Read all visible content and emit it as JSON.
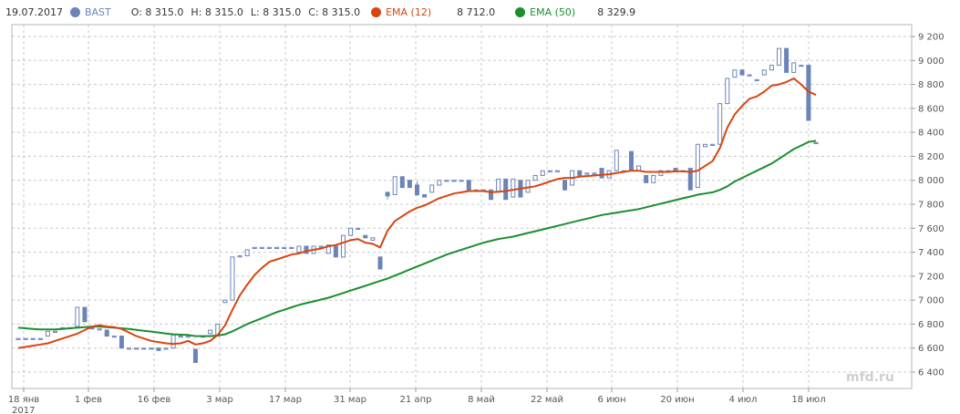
{
  "legend": {
    "date": "19.07.2017",
    "ticker": "BAST",
    "open": "O: 8 315.0",
    "high": "H: 8 315.0",
    "low": "L: 8 315.0",
    "close": "C: 8 315.0",
    "ema12_label": "EMA (12)",
    "ema12_value": "8 712.0",
    "ema50_label": "EMA (50)",
    "ema50_value": "8 329.9"
  },
  "colors": {
    "candle": "#6b84b8",
    "ema12": "#d9440f",
    "ema50": "#1a8f2e",
    "grid": "#c8c8c8"
  },
  "watermark": "mfd.ru",
  "chart_data": {
    "type": "candlestick",
    "ylim": [
      6300,
      9300
    ],
    "y_ticks": [
      "6 400",
      "6 600",
      "6 800",
      "7 000",
      "7 200",
      "7 400",
      "7 600",
      "7 800",
      "8 000",
      "8 200",
      "8 400",
      "8 600",
      "8 800",
      "9 000",
      "9 200"
    ],
    "x_ticks": [
      "18 янв",
      "1 фев",
      "16 фев",
      "3 мар",
      "17 мар",
      "31 мар",
      "21 апр",
      "8 май",
      "22 май",
      "6 июн",
      "20 июн",
      "4 июл",
      "18 июл"
    ],
    "x_subtick": "2017",
    "series": [
      {
        "name": "BAST"
      },
      {
        "name": "EMA (12)"
      },
      {
        "name": "EMA (50)"
      }
    ],
    "candles": [
      [
        6680,
        6680,
        6680,
        6680
      ],
      [
        6680,
        6680,
        6680,
        6680
      ],
      [
        6680,
        6680,
        6680,
        6680
      ],
      [
        6680,
        6680,
        6680,
        6680
      ],
      [
        6700,
        6740,
        6700,
        6740
      ],
      [
        6740,
        6740,
        6740,
        6740
      ],
      [
        6760,
        6770,
        6760,
        6770
      ],
      [
        6770,
        6770,
        6770,
        6770
      ],
      [
        6780,
        6940,
        6780,
        6940
      ],
      [
        6940,
        6940,
        6820,
        6820
      ],
      [
        6780,
        6780,
        6760,
        6760
      ],
      [
        6760,
        6760,
        6760,
        6760
      ],
      [
        6750,
        6750,
        6700,
        6700
      ],
      [
        6700,
        6700,
        6700,
        6700
      ],
      [
        6700,
        6700,
        6600,
        6600
      ],
      [
        6600,
        6600,
        6600,
        6600
      ],
      [
        6600,
        6600,
        6600,
        6600
      ],
      [
        6600,
        6600,
        6600,
        6600
      ],
      [
        6600,
        6600,
        6600,
        6600
      ],
      [
        6600,
        6600,
        6580,
        6580
      ],
      [
        6590,
        6600,
        6590,
        6600
      ],
      [
        6600,
        6710,
        6600,
        6710
      ],
      [
        6700,
        6700,
        6700,
        6700
      ],
      [
        6700,
        6700,
        6700,
        6700
      ],
      [
        6590,
        6590,
        6480,
        6480
      ],
      [
        6700,
        6700,
        6700,
        6700
      ],
      [
        6720,
        6750,
        6720,
        6750
      ],
      [
        6700,
        6800,
        6700,
        6800
      ],
      [
        6980,
        7000,
        6980,
        7000
      ],
      [
        7000,
        7360,
        7000,
        7360
      ],
      [
        7360,
        7370,
        7360,
        7370
      ],
      [
        7370,
        7420,
        7370,
        7420
      ],
      [
        7440,
        7440,
        7440,
        7440
      ],
      [
        7440,
        7440,
        7440,
        7440
      ],
      [
        7440,
        7440,
        7440,
        7440
      ],
      [
        7440,
        7440,
        7440,
        7440
      ],
      [
        7440,
        7440,
        7440,
        7440
      ],
      [
        7440,
        7440,
        7440,
        7440
      ],
      [
        7400,
        7450,
        7400,
        7450
      ],
      [
        7450,
        7450,
        7390,
        7390
      ],
      [
        7390,
        7450,
        7390,
        7450
      ],
      [
        7450,
        7450,
        7450,
        7450
      ],
      [
        7390,
        7460,
        7390,
        7460
      ],
      [
        7450,
        7450,
        7360,
        7360
      ],
      [
        7360,
        7540,
        7360,
        7540
      ],
      [
        7540,
        7600,
        7540,
        7600
      ],
      [
        7600,
        7600,
        7600,
        7600
      ],
      [
        7540,
        7540,
        7520,
        7520
      ],
      [
        7500,
        7520,
        7500,
        7520
      ],
      [
        7360,
        7360,
        7260,
        7260
      ],
      [
        7900,
        7900,
        7840,
        7870
      ],
      [
        7880,
        8030,
        7880,
        8030
      ],
      [
        8030,
        8030,
        7940,
        7940
      ],
      [
        8000,
        8000,
        7940,
        7940
      ],
      [
        7960,
        7990,
        7870,
        7880
      ],
      [
        7880,
        7880,
        7860,
        7860
      ],
      [
        7900,
        7960,
        7900,
        7960
      ],
      [
        7960,
        8000,
        7960,
        8000
      ],
      [
        8000,
        8000,
        8000,
        8000
      ],
      [
        8000,
        8000,
        8000,
        8000
      ],
      [
        8000,
        8000,
        8000,
        8000
      ],
      [
        8000,
        8000,
        7920,
        7920
      ],
      [
        7920,
        7920,
        7920,
        7920
      ],
      [
        7920,
        7920,
        7920,
        7920
      ],
      [
        7920,
        7920,
        7840,
        7840
      ],
      [
        7900,
        8010,
        7900,
        8010
      ],
      [
        8010,
        8010,
        7840,
        7840
      ],
      [
        7860,
        8010,
        7860,
        8010
      ],
      [
        8000,
        8000,
        7860,
        7860
      ],
      [
        7900,
        8000,
        7900,
        8000
      ],
      [
        8000,
        8040,
        8000,
        8040
      ],
      [
        8040,
        8080,
        8040,
        8080
      ],
      [
        8080,
        8080,
        8080,
        8080
      ],
      [
        8080,
        8080,
        8080,
        8080
      ],
      [
        8000,
        8000,
        7920,
        7920
      ],
      [
        7960,
        8080,
        7960,
        8080
      ],
      [
        8080,
        8080,
        8040,
        8040
      ],
      [
        8060,
        8060,
        8060,
        8060
      ],
      [
        8060,
        8060,
        8060,
        8060
      ],
      [
        8100,
        8100,
        8020,
        8020
      ],
      [
        8020,
        8080,
        8020,
        8080
      ],
      [
        8080,
        8250,
        8080,
        8250
      ],
      [
        8080,
        8080,
        8080,
        8080
      ],
      [
        8240,
        8240,
        8080,
        8080
      ],
      [
        8080,
        8120,
        8080,
        8120
      ],
      [
        8040,
        8040,
        7980,
        7980
      ],
      [
        7980,
        8040,
        7980,
        8040
      ],
      [
        8040,
        8080,
        8040,
        8080
      ],
      [
        8080,
        8080,
        8080,
        8080
      ],
      [
        8100,
        8100,
        8080,
        8080
      ],
      [
        8080,
        8080,
        8080,
        8080
      ],
      [
        8100,
        8100,
        7920,
        7920
      ],
      [
        7940,
        8300,
        7940,
        8300
      ],
      [
        8280,
        8300,
        8280,
        8300
      ],
      [
        8300,
        8300,
        8300,
        8300
      ],
      [
        8300,
        8640,
        8300,
        8640
      ],
      [
        8640,
        8850,
        8640,
        8850
      ],
      [
        8860,
        8920,
        8860,
        8920
      ],
      [
        8920,
        8920,
        8880,
        8880
      ],
      [
        8880,
        8880,
        8880,
        8880
      ],
      [
        8840,
        8840,
        8840,
        8840
      ],
      [
        8880,
        8920,
        8880,
        8920
      ],
      [
        8920,
        8960,
        8920,
        8960
      ],
      [
        8960,
        9100,
        8960,
        9100
      ],
      [
        9100,
        9100,
        8900,
        8900
      ],
      [
        8900,
        8980,
        8900,
        8980
      ],
      [
        8960,
        8960,
        8960,
        8960
      ],
      [
        8960,
        8960,
        8500,
        8500
      ],
      [
        8315,
        8315,
        8315,
        8315
      ]
    ],
    "ema12": [
      6600,
      6610,
      6620,
      6630,
      6640,
      6660,
      6680,
      6700,
      6720,
      6750,
      6780,
      6790,
      6780,
      6775,
      6760,
      6730,
      6700,
      6680,
      6660,
      6650,
      6640,
      6635,
      6640,
      6660,
      6630,
      6640,
      6660,
      6710,
      6790,
      6920,
      7040,
      7130,
      7210,
      7270,
      7320,
      7340,
      7360,
      7380,
      7390,
      7410,
      7420,
      7430,
      7450,
      7460,
      7480,
      7500,
      7510,
      7480,
      7470,
      7440,
      7580,
      7660,
      7700,
      7740,
      7770,
      7790,
      7820,
      7850,
      7870,
      7890,
      7900,
      7910,
      7910,
      7910,
      7900,
      7905,
      7910,
      7920,
      7930,
      7940,
      7950,
      7970,
      7990,
      8010,
      8020,
      8020,
      8030,
      8035,
      8040,
      8045,
      8050,
      8060,
      8070,
      8080,
      8080,
      8070,
      8070,
      8070,
      8070,
      8075,
      8075,
      8070,
      8080,
      8120,
      8160,
      8270,
      8440,
      8550,
      8620,
      8680,
      8700,
      8740,
      8790,
      8800,
      8820,
      8850,
      8800,
      8740,
      8712
    ],
    "ema50": [
      6770,
      6765,
      6760,
      6755,
      6755,
      6755,
      6760,
      6765,
      6770,
      6775,
      6780,
      6780,
      6775,
      6770,
      6765,
      6760,
      6752,
      6745,
      6738,
      6730,
      6722,
      6715,
      6712,
      6710,
      6700,
      6700,
      6700,
      6705,
      6715,
      6740,
      6770,
      6800,
      6825,
      6850,
      6875,
      6900,
      6920,
      6940,
      6960,
      6975,
      6990,
      7005,
      7020,
      7040,
      7060,
      7080,
      7100,
      7120,
      7140,
      7160,
      7180,
      7205,
      7230,
      7255,
      7280,
      7305,
      7330,
      7355,
      7380,
      7400,
      7420,
      7440,
      7460,
      7480,
      7495,
      7510,
      7520,
      7530,
      7545,
      7560,
      7575,
      7590,
      7605,
      7620,
      7635,
      7650,
      7665,
      7680,
      7695,
      7710,
      7720,
      7730,
      7740,
      7750,
      7760,
      7775,
      7790,
      7805,
      7820,
      7835,
      7850,
      7865,
      7880,
      7890,
      7900,
      7920,
      7950,
      7990,
      8020,
      8050,
      8080,
      8110,
      8140,
      8180,
      8220,
      8260,
      8290,
      8320,
      8330
    ]
  }
}
